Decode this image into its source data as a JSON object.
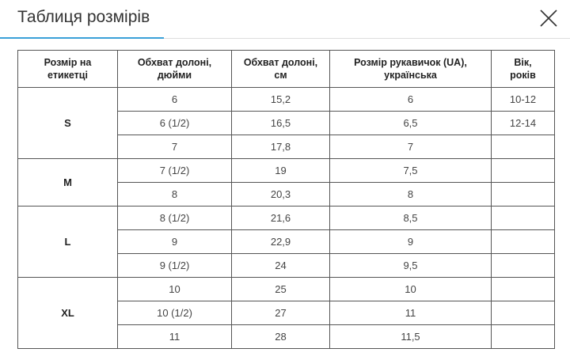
{
  "header": {
    "title": "Таблиця розмірів"
  },
  "table": {
    "headers": [
      [
        "Розмір на",
        "етикетці"
      ],
      [
        "Обхват долоні,",
        "дюйми"
      ],
      [
        "Обхват долоні,",
        "см"
      ],
      [
        "Розмір рукавичок (UA),",
        "українська"
      ],
      [
        "Вік,",
        "років"
      ]
    ],
    "groups": [
      {
        "size": "S",
        "rows": [
          [
            "6",
            "15,2",
            "6",
            "10-12"
          ],
          [
            "6 (1/2)",
            "16,5",
            "6,5",
            "12-14"
          ],
          [
            "7",
            "17,8",
            "7"
          ]
        ]
      },
      {
        "size": "M",
        "rows": [
          [
            "7 (1/2)",
            "19",
            "7,5"
          ],
          [
            "8",
            "20,3",
            "8"
          ]
        ]
      },
      {
        "size": "L",
        "rows": [
          [
            "8 (1/2)",
            "21,6",
            "8,5"
          ],
          [
            "9",
            "22,9",
            "9"
          ],
          [
            "9 (1/2)",
            "24",
            "9,5"
          ]
        ]
      },
      {
        "size": "XL",
        "rows": [
          [
            "10",
            "25",
            "10"
          ],
          [
            "10 (1/2)",
            "27",
            "11"
          ],
          [
            "11",
            "28",
            "11,5"
          ]
        ]
      }
    ]
  }
}
